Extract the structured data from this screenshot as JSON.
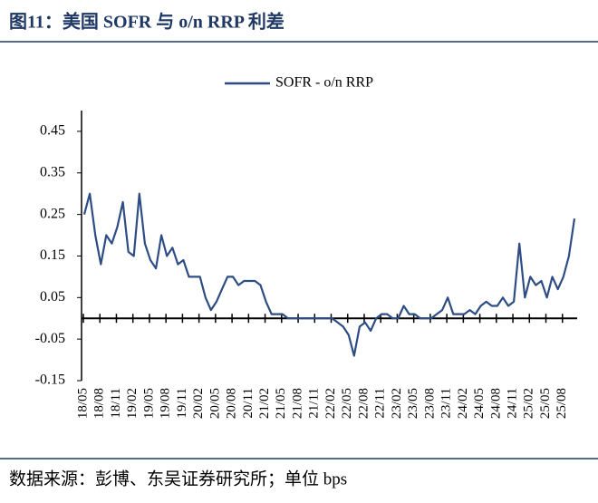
{
  "chart_data": {
    "type": "line",
    "title": "图11：美国 SOFR 与 o/n RRP 利差",
    "source": "数据来源：彭博、东吴证券研究所；单位 bps",
    "categories": [
      "18/05",
      null,
      null,
      "18/08",
      null,
      null,
      "18/11",
      null,
      null,
      "19/02",
      null,
      null,
      "19/05",
      null,
      null,
      "19/08",
      null,
      null,
      "19/11",
      null,
      null,
      "20/02",
      null,
      null,
      "20/05",
      null,
      null,
      "20/08",
      null,
      null,
      "20/11",
      null,
      null,
      "21/02",
      null,
      null,
      "21/05",
      null,
      null,
      "21/08",
      null,
      null,
      "21/11",
      null,
      null,
      "22/02",
      null,
      null,
      "22/05",
      null,
      null,
      "22/08",
      null,
      null,
      "22/11",
      null,
      null,
      "23/02",
      null,
      null,
      "23/05",
      null,
      null,
      "23/08",
      null,
      null,
      "23/11",
      null,
      null,
      "24/02",
      null,
      null,
      "24/05",
      null,
      null,
      "24/08",
      null,
      null,
      "24/11",
      null,
      null,
      "25/02",
      null,
      null,
      "25/05",
      null,
      null,
      "25/08",
      null,
      null
    ],
    "series": [
      {
        "name": "SOFR - o/n RRP",
        "color": "#2e4d84",
        "values": [
          0.25,
          0.3,
          0.2,
          0.13,
          0.2,
          0.18,
          0.22,
          0.28,
          0.16,
          0.15,
          0.3,
          0.18,
          0.14,
          0.12,
          0.2,
          0.15,
          0.17,
          0.13,
          0.14,
          0.1,
          0.1,
          0.1,
          0.05,
          0.02,
          0.04,
          0.07,
          0.1,
          0.1,
          0.08,
          0.09,
          0.09,
          0.09,
          0.08,
          0.04,
          0.01,
          0.01,
          0.01,
          0,
          0,
          0,
          0,
          0,
          0,
          0,
          0,
          0,
          -0.01,
          -0.02,
          -0.04,
          -0.09,
          -0.02,
          -0.01,
          -0.03,
          0,
          0.01,
          0.01,
          0,
          0,
          0.03,
          0.01,
          0.01,
          0,
          0,
          0,
          0.01,
          0.02,
          0.05,
          0.01,
          0.01,
          0.01,
          0.02,
          0.01,
          0.03,
          0.04,
          0.03,
          0.03,
          0.05,
          0.03,
          0.04,
          0.18,
          0.05,
          0.1,
          0.08,
          0.09,
          0.05,
          0.1,
          0.07,
          0.1,
          0.15,
          0.24
        ]
      }
    ],
    "ylim": [
      -0.15,
      0.5
    ],
    "yticks": [
      -0.15,
      -0.05,
      0.05,
      0.15,
      0.25,
      0.35,
      0.45
    ],
    "legend": "top"
  }
}
